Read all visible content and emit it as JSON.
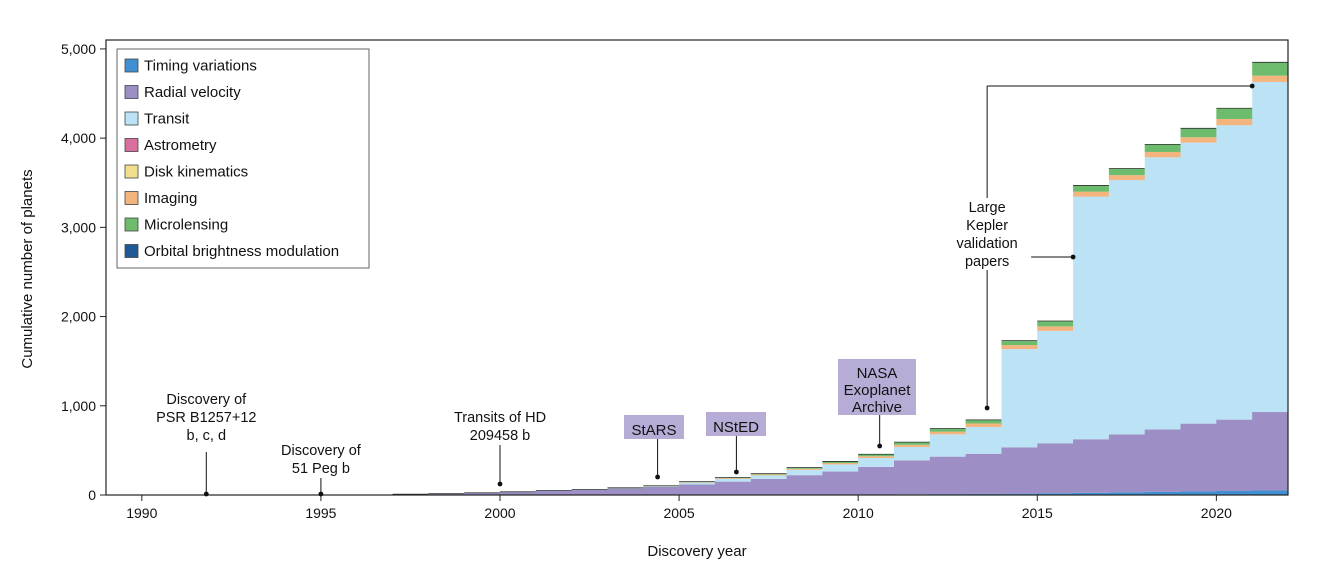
{
  "chart_data": {
    "type": "area",
    "stacked": true,
    "step": true,
    "xlabel": "Discovery year",
    "ylabel": "Cumulative number of planets",
    "xlim": [
      1989,
      2022
    ],
    "ylim": [
      0,
      5100
    ],
    "xticks": [
      1990,
      1995,
      2000,
      2005,
      2010,
      2015,
      2020
    ],
    "xtick_labels": [
      "1990",
      "1995",
      "2000",
      "2005",
      "2010",
      "2015",
      "2020"
    ],
    "yticks": [
      0,
      1000,
      2000,
      3000,
      4000,
      5000
    ],
    "ytick_labels": [
      "0",
      "1,000",
      "2,000",
      "3,000",
      "4,000",
      "5,000"
    ],
    "legend_position": "top-left",
    "x": [
      1997,
      1998,
      1999,
      2000,
      2001,
      2002,
      2003,
      2004,
      2005,
      2006,
      2007,
      2008,
      2009,
      2010,
      2011,
      2012,
      2013,
      2014,
      2015,
      2016,
      2017,
      2018,
      2019,
      2020,
      2021
    ],
    "series": [
      {
        "name": "Orbital brightness modulation",
        "color": "#1f5a96",
        "values": [
          0,
          0,
          0,
          0,
          0,
          0,
          0,
          0,
          0,
          0,
          0,
          0,
          0,
          0,
          0,
          0,
          0,
          0,
          0,
          0,
          0,
          0,
          0,
          0,
          0
        ]
      },
      {
        "name": "Timing variations",
        "color": "#3f8fd2",
        "values": [
          0,
          0,
          0,
          0,
          0,
          0,
          0,
          0,
          0,
          0,
          0,
          2,
          3,
          5,
          8,
          10,
          12,
          15,
          20,
          25,
          30,
          35,
          40,
          45,
          50
        ]
      },
      {
        "name": "Radial velocity",
        "color": "#9d8fc6",
        "values": [
          10,
          15,
          25,
          35,
          50,
          60,
          75,
          90,
          120,
          150,
          180,
          220,
          260,
          310,
          380,
          420,
          450,
          520,
          560,
          600,
          650,
          700,
          760,
          800,
          880
        ]
      },
      {
        "name": "Transit",
        "color": "#bce3f5",
        "values": [
          0,
          0,
          0,
          1,
          2,
          3,
          5,
          10,
          20,
          30,
          40,
          60,
          80,
          100,
          150,
          250,
          300,
          1100,
          1260,
          2720,
          2850,
          3050,
          3150,
          3300,
          3700
        ]
      },
      {
        "name": "Astrometry",
        "color": "#d96f9e",
        "values": [
          0,
          0,
          0,
          0,
          0,
          0,
          0,
          0,
          0,
          0,
          0,
          0,
          0,
          0,
          0,
          0,
          0,
          0,
          0,
          0,
          0,
          0,
          0,
          0,
          0
        ]
      },
      {
        "name": "Disk kinematics",
        "color": "#f2df8e",
        "values": [
          0,
          0,
          0,
          0,
          0,
          0,
          0,
          0,
          0,
          0,
          0,
          0,
          0,
          0,
          0,
          0,
          0,
          0,
          0,
          0,
          0,
          0,
          0,
          0,
          0
        ]
      },
      {
        "name": "Imaging",
        "color": "#f3b47d",
        "values": [
          0,
          0,
          0,
          0,
          0,
          0,
          0,
          2,
          5,
          8,
          10,
          12,
          15,
          20,
          25,
          30,
          40,
          45,
          50,
          55,
          55,
          60,
          60,
          70,
          70
        ]
      },
      {
        "name": "Microlensing",
        "color": "#6dbb6d",
        "values": [
          0,
          0,
          0,
          0,
          0,
          0,
          1,
          2,
          5,
          8,
          10,
          14,
          18,
          22,
          30,
          35,
          40,
          50,
          60,
          70,
          75,
          85,
          100,
          120,
          150
        ]
      }
    ],
    "annotations": [
      {
        "id": "psr",
        "lines": [
          "Discovery of",
          "PSR B1257+12",
          "b, c, d"
        ],
        "year": 1991.8
      },
      {
        "id": "peg",
        "lines": [
          "Discovery of",
          "51 Peg b"
        ],
        "year": 1995.0
      },
      {
        "id": "hd",
        "lines": [
          "Transits of HD",
          "209458 b"
        ],
        "year": 2000.0
      },
      {
        "id": "stars",
        "lines": [
          "StARS"
        ],
        "year": 2004.4,
        "boxed": true
      },
      {
        "id": "nsted",
        "lines": [
          "NStED"
        ],
        "year": 2006.6,
        "boxed": true
      },
      {
        "id": "nasa",
        "lines": [
          "NASA",
          "Exoplanet",
          "Archive"
        ],
        "year": 2010.6,
        "boxed": true
      },
      {
        "id": "kepler",
        "lines": [
          "Large",
          "Kepler",
          "validation",
          "papers"
        ],
        "points": [
          2013.6,
          2016.0,
          2021.0
        ]
      }
    ]
  }
}
